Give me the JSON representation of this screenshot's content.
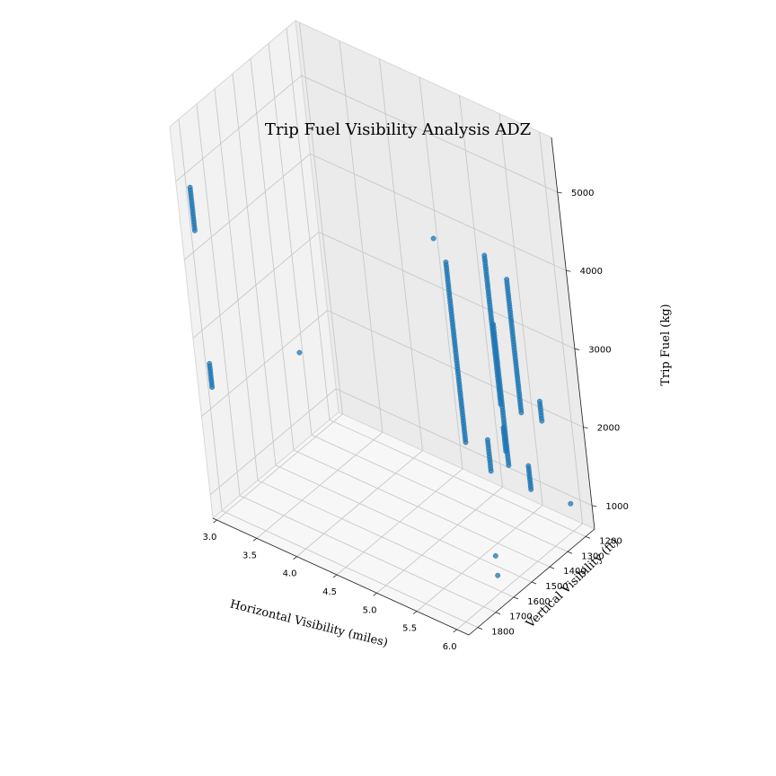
{
  "chart_data": {
    "type": "scatter",
    "title": "Trip Fuel Visibility Analysis ADZ",
    "xlabel": "Horizontal Visibility (miles)",
    "ylabel": "Vertical Visibility (ft)",
    "zlabel": "Trip Fuel (kg)",
    "xlim": [
      2.95,
      6.15
    ],
    "ylim": [
      1150,
      1850
    ],
    "zlim": [
      700,
      5700
    ],
    "x_ticks": [
      "3.0",
      "3.5",
      "4.0",
      "4.5",
      "5.0",
      "5.5",
      "6.0"
    ],
    "y_ticks": [
      "1200",
      "1300",
      "1400",
      "1500",
      "1600",
      "1700",
      "1800"
    ],
    "z_ticks": [
      "1000",
      "2000",
      "3000",
      "4000",
      "5000"
    ],
    "grid": true,
    "marker_color": "#1f77b4",
    "clusters": [
      {
        "x": 3.0,
        "y": 1800,
        "z": [
          4300,
          4850
        ]
      },
      {
        "x": 3.0,
        "y": 1800,
        "z": [
          2300,
          2600
        ]
      },
      {
        "x": 5.0,
        "y": 1200,
        "z": [
          1000,
          1400
        ]
      },
      {
        "x": 5.5,
        "y": 1200,
        "z": [
          1000,
          1300
        ]
      },
      {
        "x": 5.5,
        "y": 1300,
        "z": [
          1500,
          3300
        ]
      },
      {
        "x": 6.0,
        "y": 1300,
        "z": [
          2300,
          2550
        ]
      },
      {
        "x": 6.0,
        "y": 1400,
        "z": [
          2600,
          4300
        ]
      },
      {
        "x": 6.0,
        "y": 1500,
        "z": [
          2300,
          2600
        ]
      },
      {
        "x": 6.0,
        "y": 1500,
        "z": [
          2900,
          4800
        ]
      },
      {
        "x": 6.0,
        "y": 1700,
        "z": [
          2800,
          5100
        ]
      }
    ],
    "points": [
      {
        "x": 4.2,
        "y": 1800,
        "z": 3300
      },
      {
        "x": 6.0,
        "y": 1200,
        "z": 1050
      },
      {
        "x": 6.1,
        "y": 1650,
        "z": 1050
      },
      {
        "x": 6.1,
        "y": 1650,
        "z": 1300
      },
      {
        "x": 6.0,
        "y": 1750,
        "z": 5500
      }
    ]
  }
}
